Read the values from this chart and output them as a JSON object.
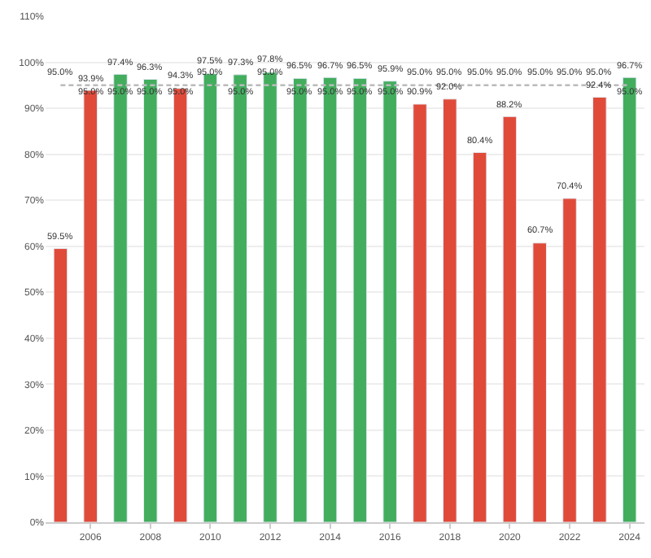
{
  "chart_data": {
    "type": "bar",
    "x": [
      2005,
      2006,
      2007,
      2008,
      2009,
      2010,
      2011,
      2012,
      2013,
      2014,
      2015,
      2016,
      2017,
      2018,
      2019,
      2020,
      2021,
      2022,
      2023,
      2024
    ],
    "series": [
      {
        "values": [
          59.5,
          93.9,
          97.4,
          96.3,
          94.3,
          97.5,
          97.3,
          97.8,
          96.5,
          96.7,
          96.5,
          95.9,
          90.9,
          92.0,
          80.4,
          88.2,
          60.7,
          70.4,
          92.4,
          96.7
        ],
        "colors": [
          "#e04b39",
          "#e04b39",
          "#43ad5e",
          "#43ad5e",
          "#e04b39",
          "#43ad5e",
          "#43ad5e",
          "#43ad5e",
          "#43ad5e",
          "#43ad5e",
          "#43ad5e",
          "#43ad5e",
          "#e04b39",
          "#e04b39",
          "#e04b39",
          "#e04b39",
          "#e04b39",
          "#e04b39",
          "#e04b39",
          "#43ad5e"
        ],
        "value_labels": [
          "59.5%",
          "93.9%",
          "97.4%",
          "96.3%",
          "94.3%",
          "97.5%",
          "97.3%",
          "97.8%",
          "96.5%",
          "96.7%",
          "96.5%",
          "95.9%",
          "90.9%",
          "92.0%",
          "80.4%",
          "88.2%",
          "60.7%",
          "70.4%",
          "92.4%",
          "96.7%"
        ]
      },
      {
        "type": "line",
        "color": "#bbbbbb",
        "line_style": "dashed",
        "marker": "none",
        "values": [
          95.0,
          95.0,
          95.0,
          95.0,
          95.0,
          95.0,
          95.0,
          95.0,
          95.0,
          95.0,
          95.0,
          95.0,
          95.0,
          95.0,
          95.0,
          95.0,
          95.0,
          95.0,
          95.0,
          95.0
        ],
        "value_labels": [
          "95.0%",
          "95.0%",
          "95.0%",
          "95.0%",
          "95.0%",
          "95.0%",
          "95.0%",
          "95.0%",
          "95.0%",
          "95.0%",
          "95.0%",
          "95.0%",
          "95.0%",
          "95.0%",
          "95.0%",
          "95.0%",
          "95.0%",
          "95.0%",
          "95.0%",
          "95.0%"
        ]
      }
    ],
    "xlim": [
      2004.5,
      2024.5
    ],
    "xticks": [
      2006,
      2008,
      2010,
      2012,
      2014,
      2016,
      2018,
      2020,
      2022,
      2024
    ],
    "ylim": [
      0,
      110
    ],
    "yticks": [
      {
        "value": 0,
        "label": "0%"
      },
      {
        "value": 10,
        "label": "10%"
      },
      {
        "value": 20,
        "label": "20%"
      },
      {
        "value": 30,
        "label": "30%"
      },
      {
        "value": 40,
        "label": "40%"
      },
      {
        "value": 50,
        "label": "50%"
      },
      {
        "value": 60,
        "label": "60%"
      },
      {
        "value": 70,
        "label": "70%"
      },
      {
        "value": 80,
        "label": "80%"
      },
      {
        "value": 90,
        "label": "90%"
      },
      {
        "value": 100,
        "label": "100%"
      },
      {
        "value": 110,
        "label": "110%"
      }
    ],
    "grid": "y"
  }
}
